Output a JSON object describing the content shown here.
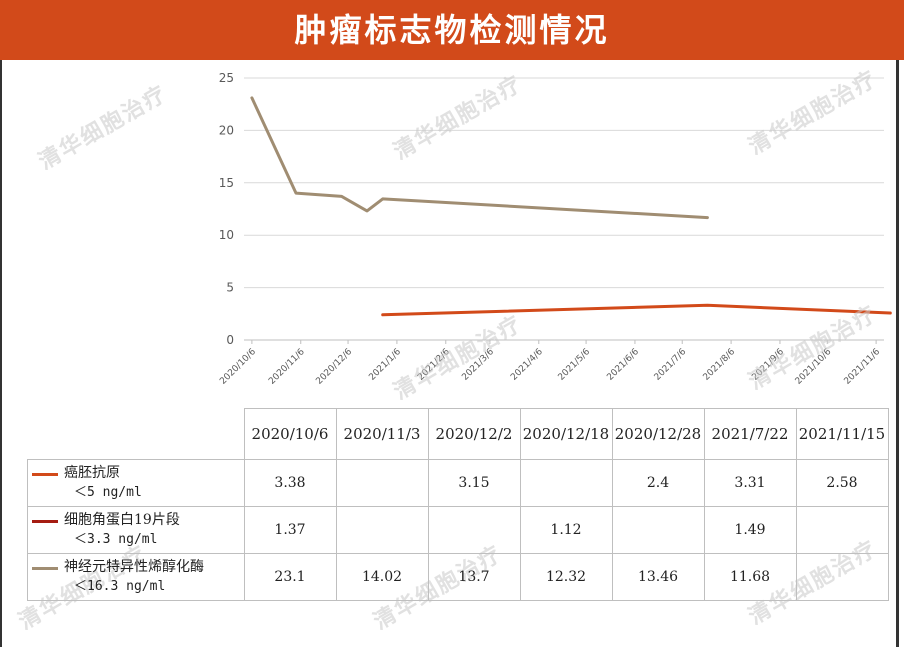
{
  "title": "肿瘤标志物检测情况",
  "watermark": "清华细胞治疗",
  "colors": {
    "header_bg": "#d24a1a",
    "cea": "#d24a1a",
    "cyfra": "#a51c12",
    "nse": "#a08d72",
    "grid": "#d9d9d9"
  },
  "chart_data": {
    "type": "line",
    "x_tick_labels": [
      "2020/10/6",
      "2020/11/6",
      "2020/12/6",
      "2021/1/6",
      "2021/2/6",
      "2021/3/6",
      "2021/4/6",
      "2021/5/6",
      "2021/6/6",
      "2021/7/6",
      "2021/8/6",
      "2021/9/6",
      "2021/10/6",
      "2021/11/6"
    ],
    "x_range": [
      "2020-10-01",
      "2021-11-11"
    ],
    "y_ticks": [
      0,
      5,
      10,
      15,
      20,
      25
    ],
    "ylim": [
      0,
      25
    ],
    "grid": true,
    "series": [
      {
        "name": "癌胚抗原",
        "color": "#d24a1a",
        "points": [
          [
            "2020-12-28",
            2.4
          ],
          [
            "2021-07-22",
            3.31
          ],
          [
            "2021-11-15",
            2.58
          ]
        ]
      },
      {
        "name": "神经元特异性烯醇化酶",
        "color": "#a08d72",
        "points": [
          [
            "2020-10-06",
            23.1
          ],
          [
            "2020-11-03",
            14.02
          ],
          [
            "2020-12-02",
            13.7
          ],
          [
            "2020-12-18",
            12.32
          ],
          [
            "2020-12-28",
            13.46
          ],
          [
            "2021-07-22",
            11.68
          ]
        ]
      }
    ]
  },
  "table": {
    "headers": [
      "2020/10/6",
      "2020/11/3",
      "2020/12/2",
      "2020/12/18",
      "2020/12/28",
      "2021/7/22",
      "2021/11/15"
    ],
    "rows": [
      {
        "name": "癌胚抗原",
        "limit": "＜5 ng/ml",
        "values": [
          "3.38",
          "",
          "3.15",
          "",
          "2.4",
          "3.31",
          "2.58"
        ]
      },
      {
        "name": "细胞角蛋白19片段",
        "limit": "＜3.3 ng/ml",
        "values": [
          "1.37",
          "",
          "",
          "1.12",
          "",
          "1.49",
          ""
        ]
      },
      {
        "name": "神经元特异性烯醇化酶",
        "limit": "＜16.3 ng/ml",
        "values": [
          "23.1",
          "14.02",
          "13.7",
          "12.32",
          "13.46",
          "11.68",
          ""
        ]
      }
    ]
  }
}
